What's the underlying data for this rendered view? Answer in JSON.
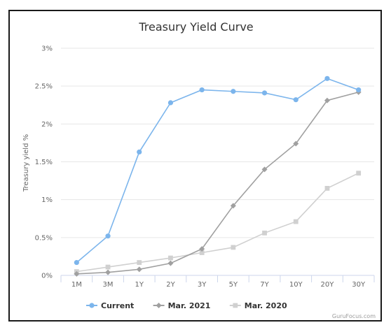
{
  "chart_data": {
    "type": "line",
    "title": "Treasury Yield Curve",
    "ylabel": "Treasury yield %",
    "xlabel": "",
    "categories": [
      "1M",
      "3M",
      "1Y",
      "2Y",
      "3Y",
      "5Y",
      "7Y",
      "10Y",
      "20Y",
      "30Y"
    ],
    "ylim": [
      0,
      3
    ],
    "yticks": [
      0,
      0.5,
      1,
      1.5,
      2,
      2.5,
      3
    ],
    "ytick_labels": [
      "0%",
      "0.5%",
      "1%",
      "1.5%",
      "2%",
      "2.5%",
      "3%"
    ],
    "grid": true,
    "legend_position": "bottom-center",
    "series": [
      {
        "name": "Current",
        "color": "#7cb5ec",
        "marker": "circle",
        "values": [
          0.17,
          0.52,
          1.63,
          2.28,
          2.45,
          2.43,
          2.41,
          2.32,
          2.6,
          2.45
        ]
      },
      {
        "name": "Mar. 2021",
        "color": "#a0a0a0",
        "marker": "diamond",
        "values": [
          0.02,
          0.04,
          0.08,
          0.16,
          0.35,
          0.92,
          1.4,
          1.74,
          2.31,
          2.42
        ]
      },
      {
        "name": "Mar. 2020",
        "color": "#d0d0d0",
        "marker": "square",
        "values": [
          0.05,
          0.11,
          0.17,
          0.23,
          0.3,
          0.37,
          0.56,
          0.71,
          1.15,
          1.35
        ]
      }
    ],
    "credit": "GuruFocus.com"
  }
}
